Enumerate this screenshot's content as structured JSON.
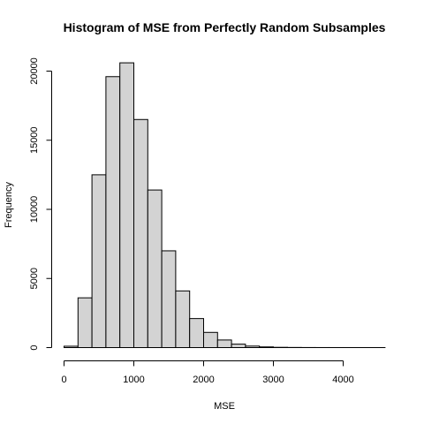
{
  "chart_data": {
    "type": "bar",
    "title": "Histogram of MSE from Perfectly Random Subsamples",
    "xlabel": "MSE",
    "ylabel": "Frequency",
    "bin_width": 200,
    "bin_starts": [
      0,
      200,
      400,
      600,
      800,
      1000,
      1200,
      1400,
      1600,
      1800,
      2000,
      2200,
      2400,
      2600,
      2800,
      3000,
      3200,
      3400,
      3600,
      3800,
      4000,
      4200,
      4400
    ],
    "values": [
      100,
      3600,
      12500,
      19600,
      20600,
      16500,
      11400,
      7000,
      4100,
      2100,
      1100,
      550,
      250,
      110,
      50,
      20,
      10,
      5,
      3,
      2,
      1,
      1,
      1
    ],
    "xlim": [
      0,
      4600
    ],
    "ylim": [
      0,
      20600
    ],
    "x_ticks": [
      "0",
      "1000",
      "2000",
      "3000",
      "4000"
    ],
    "y_ticks": [
      "0",
      "5000",
      "10000",
      "15000",
      "20000"
    ],
    "grid": false,
    "legend": "none"
  }
}
